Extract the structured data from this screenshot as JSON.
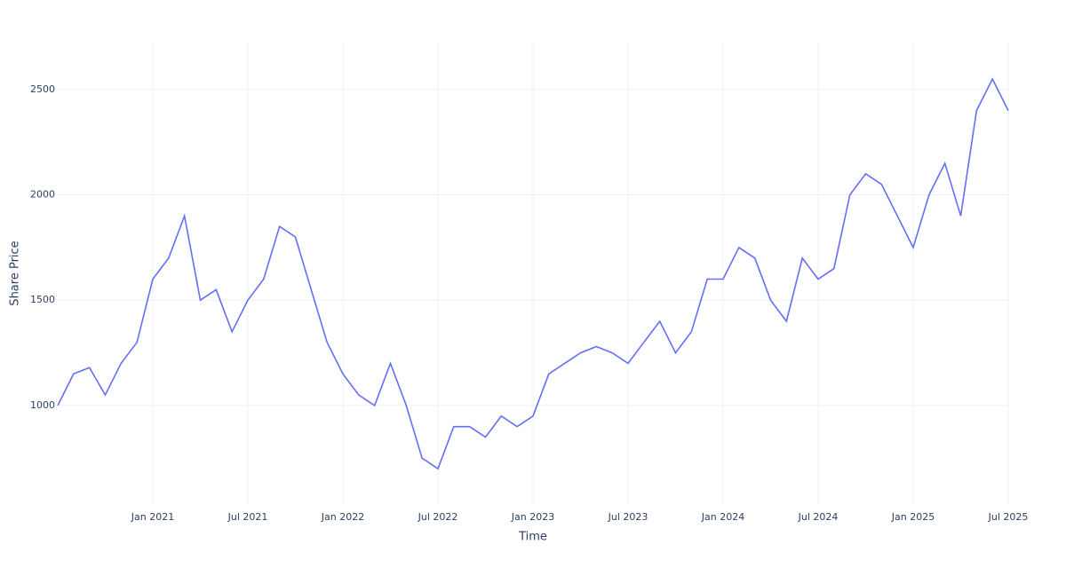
{
  "chart_data": {
    "type": "line",
    "x_label": "Time",
    "y_label": "Share Price",
    "x": [
      "2020-07",
      "2020-08",
      "2020-09",
      "2020-10",
      "2020-11",
      "2020-12",
      "2021-01",
      "2021-02",
      "2021-03",
      "2021-04",
      "2021-05",
      "2021-06",
      "2021-07",
      "2021-08",
      "2021-09",
      "2021-10",
      "2021-11",
      "2021-12",
      "2022-01",
      "2022-02",
      "2022-03",
      "2022-04",
      "2022-05",
      "2022-06",
      "2022-07",
      "2022-08",
      "2022-09",
      "2022-10",
      "2022-11",
      "2022-12",
      "2023-01",
      "2023-02",
      "2023-03",
      "2023-04",
      "2023-05",
      "2023-06",
      "2023-07",
      "2023-08",
      "2023-09",
      "2023-10",
      "2023-11",
      "2023-12",
      "2024-01",
      "2024-02",
      "2024-03",
      "2024-04",
      "2024-05",
      "2024-06",
      "2024-07",
      "2024-08",
      "2024-09",
      "2024-10",
      "2024-11",
      "2024-12",
      "2025-01",
      "2025-02",
      "2025-03",
      "2025-04",
      "2025-05",
      "2025-06",
      "2025-07"
    ],
    "series": [
      {
        "color": "#636efa",
        "values": [
          1000,
          1150,
          1180,
          1050,
          1200,
          1300,
          1600,
          1700,
          1900,
          1500,
          1550,
          1350,
          1500,
          1600,
          1850,
          1800,
          1550,
          1300,
          1150,
          1050,
          1000,
          1200,
          1000,
          750,
          700,
          900,
          900,
          850,
          950,
          900,
          950,
          1150,
          1200,
          1250,
          1280,
          1250,
          1200,
          1300,
          1400,
          1250,
          1350,
          1600,
          1600,
          1750,
          1700,
          1500,
          1400,
          1700,
          1600,
          1650,
          2000,
          2100,
          2050,
          1900,
          1750,
          2000,
          2150,
          1900,
          2400,
          2550,
          2400
        ]
      }
    ],
    "xlim": [
      "2020-07",
      "2025-07"
    ],
    "xticks": [
      {
        "value": "2021-01",
        "label": "Jan 2021"
      },
      {
        "value": "2021-07",
        "label": "Jul 2021"
      },
      {
        "value": "2022-01",
        "label": "Jan 2022"
      },
      {
        "value": "2022-07",
        "label": "Jul 2022"
      },
      {
        "value": "2023-01",
        "label": "Jan 2023"
      },
      {
        "value": "2023-07",
        "label": "Jul 2023"
      },
      {
        "value": "2024-01",
        "label": "Jan 2024"
      },
      {
        "value": "2024-07",
        "label": "Jul 2024"
      },
      {
        "value": "2025-01",
        "label": "Jan 2025"
      },
      {
        "value": "2025-07",
        "label": "Jul 2025"
      }
    ],
    "ylim": [
      532,
      2727
    ],
    "yticks": [
      1000,
      1500,
      2000,
      2500
    ],
    "grid": true
  }
}
